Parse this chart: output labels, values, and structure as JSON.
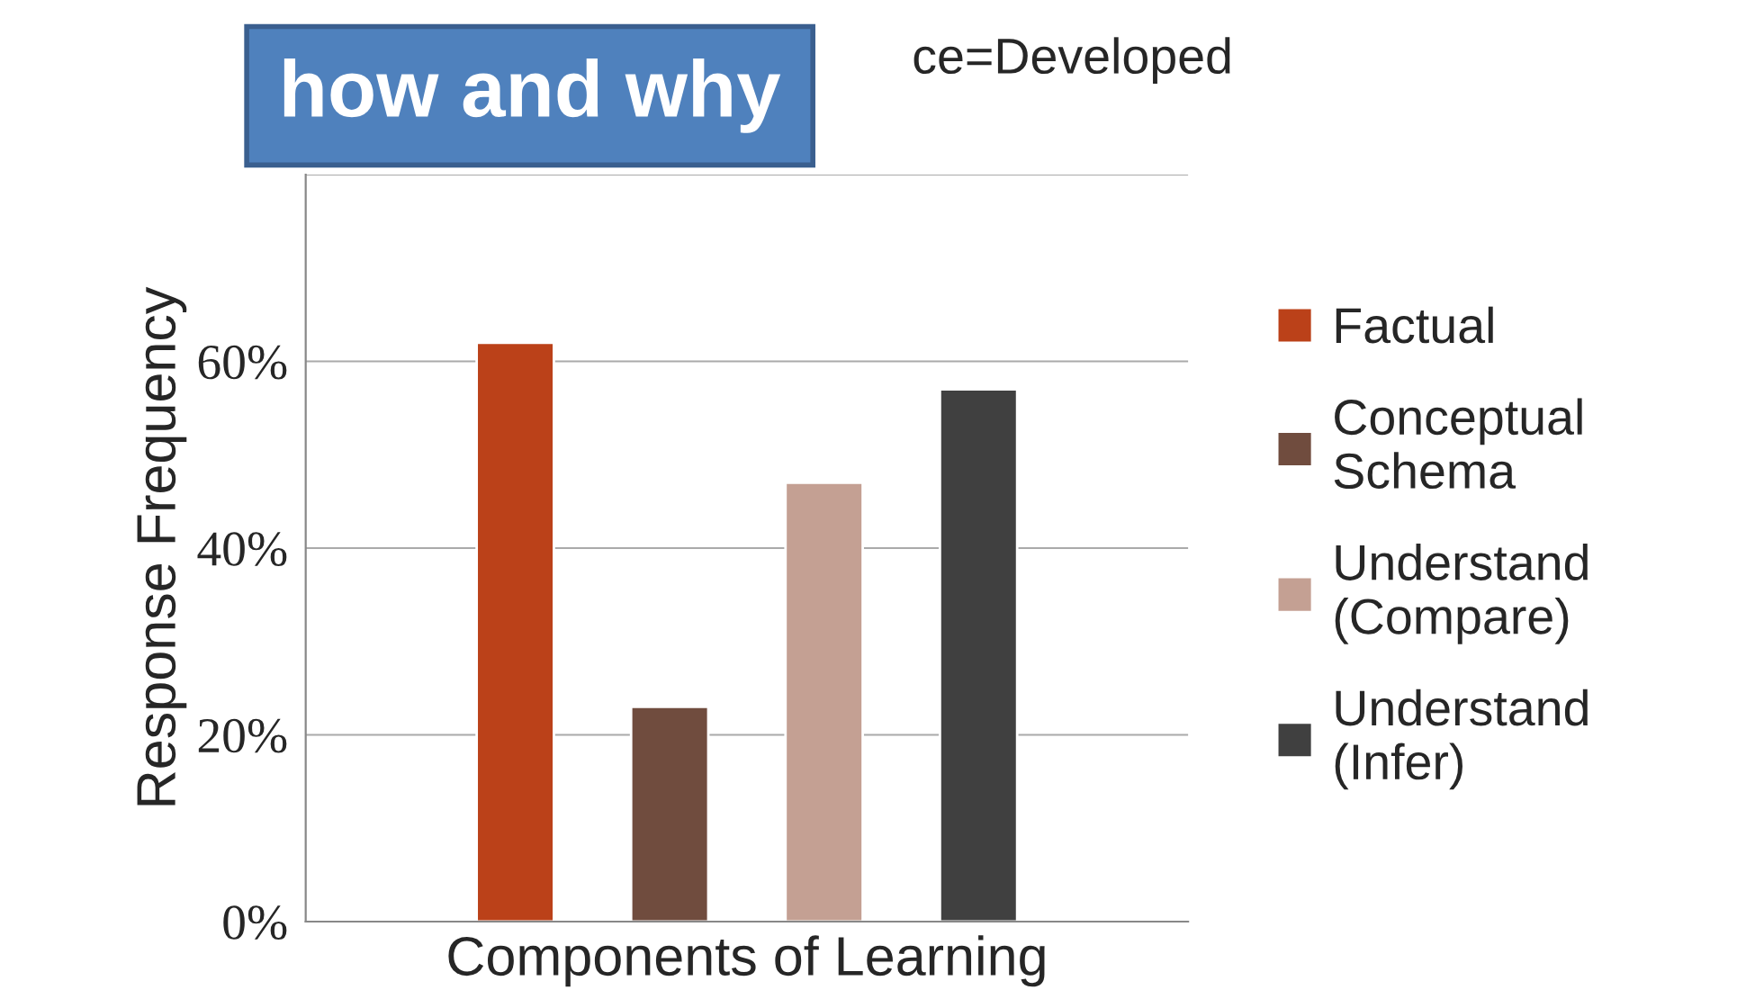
{
  "chart_data": {
    "type": "bar",
    "title": "ce=Developed",
    "xlabel": "Components of Learning",
    "ylabel": "Response Frequency",
    "categories": [
      null
    ],
    "series": [
      {
        "name": "Factual",
        "color": "#bb4119",
        "values": [
          62
        ]
      },
      {
        "name": "Conceptual\nSchema",
        "color": "#704c3e",
        "values": [
          23
        ]
      },
      {
        "name": "Understand\n(Compare)",
        "color": "#c4a093",
        "values": [
          47
        ]
      },
      {
        "name": "Understand\n(Infer)",
        "color": "#404040",
        "values": [
          57
        ]
      }
    ],
    "ylim": [
      0,
      80
    ],
    "yticks": [
      {
        "value": 0,
        "label": "0%"
      },
      {
        "value": 20,
        "label": "20%"
      },
      {
        "value": 40,
        "label": "40%"
      },
      {
        "value": 60,
        "label": "60%"
      },
      {
        "value": 80,
        "label": null
      }
    ],
    "grid": "y",
    "legend": "right",
    "annotations": [
      "how and why"
    ]
  }
}
